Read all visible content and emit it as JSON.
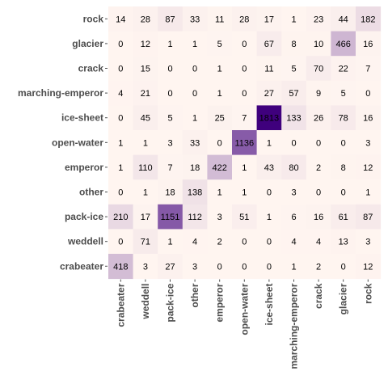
{
  "chart_data": {
    "type": "heatmap",
    "title": "",
    "xlabel": "",
    "ylabel": "",
    "x_categories": [
      "crabeater",
      "weddell",
      "pack-ice",
      "other",
      "emperor",
      "open-water",
      "ice-sheet",
      "marching-emperor",
      "crack",
      "glacier",
      "rock"
    ],
    "y_categories": [
      "rock",
      "glacier",
      "crack",
      "marching-emperor",
      "ice-sheet",
      "open-water",
      "emperor",
      "other",
      "pack-ice",
      "weddell",
      "crabeater"
    ],
    "values": [
      [
        14,
        28,
        87,
        33,
        11,
        28,
        17,
        1,
        23,
        44,
        182
      ],
      [
        0,
        12,
        1,
        1,
        5,
        0,
        67,
        8,
        10,
        466,
        16
      ],
      [
        0,
        15,
        0,
        0,
        1,
        0,
        11,
        5,
        70,
        22,
        7
      ],
      [
        4,
        21,
        0,
        0,
        1,
        0,
        27,
        57,
        9,
        5,
        0
      ],
      [
        0,
        45,
        5,
        1,
        25,
        7,
        1813,
        133,
        26,
        78,
        16
      ],
      [
        1,
        1,
        3,
        33,
        0,
        1136,
        1,
        0,
        0,
        0,
        3
      ],
      [
        1,
        110,
        7,
        18,
        422,
        1,
        43,
        80,
        2,
        8,
        12
      ],
      [
        0,
        1,
        18,
        138,
        1,
        1,
        0,
        3,
        0,
        0,
        1
      ],
      [
        210,
        17,
        1151,
        112,
        3,
        51,
        1,
        6,
        16,
        61,
        87
      ],
      [
        0,
        71,
        1,
        4,
        2,
        0,
        0,
        4,
        4,
        13,
        3
      ],
      [
        418,
        3,
        27,
        3,
        0,
        0,
        0,
        1,
        2,
        0,
        12
      ]
    ],
    "value_range": [
      0,
      1813
    ],
    "colors": {
      "low": "#fff5f0",
      "high": "#3f007d"
    },
    "grid": false,
    "legend": "none"
  }
}
